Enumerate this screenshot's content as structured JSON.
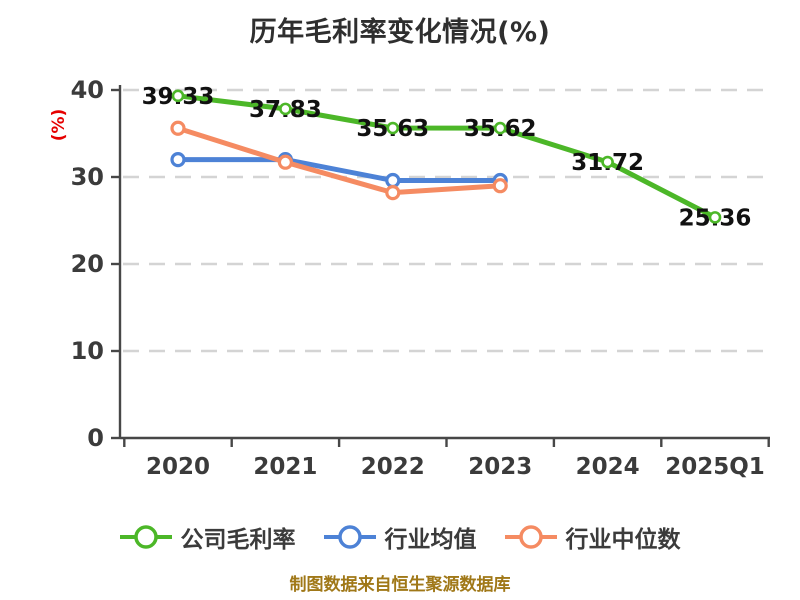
{
  "page": {
    "title": "历年毛利率变化情况(%)",
    "footer_note": "制图数据来自恒生聚源数据库"
  },
  "chart_data": {
    "type": "line",
    "title": "历年毛利率变化情况(%)",
    "ylabel": "(%)",
    "categories": [
      "2020",
      "2021",
      "2022",
      "2023",
      "2024",
      "2025Q1"
    ],
    "series": [
      {
        "name": "公司毛利率",
        "color": "#4cb728",
        "values": [
          39.33,
          37.83,
          35.63,
          35.62,
          31.72,
          25.36
        ],
        "point_labels": [
          "39.33",
          "37.83",
          "35.63",
          "35.62",
          "31.72",
          "25.36"
        ]
      },
      {
        "name": "行业均值",
        "color": "#4d82d6",
        "values": [
          32.0,
          32.0,
          29.6,
          29.6
        ],
        "point_labels": null
      },
      {
        "name": "行业中位数",
        "color": "#f58b62",
        "values": [
          35.6,
          31.7,
          28.2,
          29.0
        ],
        "point_labels": null
      }
    ],
    "ylim": [
      0,
      40
    ],
    "yticks": [
      0,
      10,
      20,
      30,
      40
    ],
    "grid": "horizontal-dashed",
    "legend_position": "bottom"
  },
  "colors": {
    "company_line": "#4cb728",
    "industry_avg_line": "#4d82d6",
    "industry_median_line": "#f58b62",
    "axis": "#474747",
    "gridline": "#d4d4d4",
    "tick_text": "#3b3b3b",
    "data_label": "#111111",
    "y_unit_label": "#e60000",
    "footer_text": "#a07818",
    "title_text": "#2f2f2f",
    "background": "#ffffff"
  }
}
